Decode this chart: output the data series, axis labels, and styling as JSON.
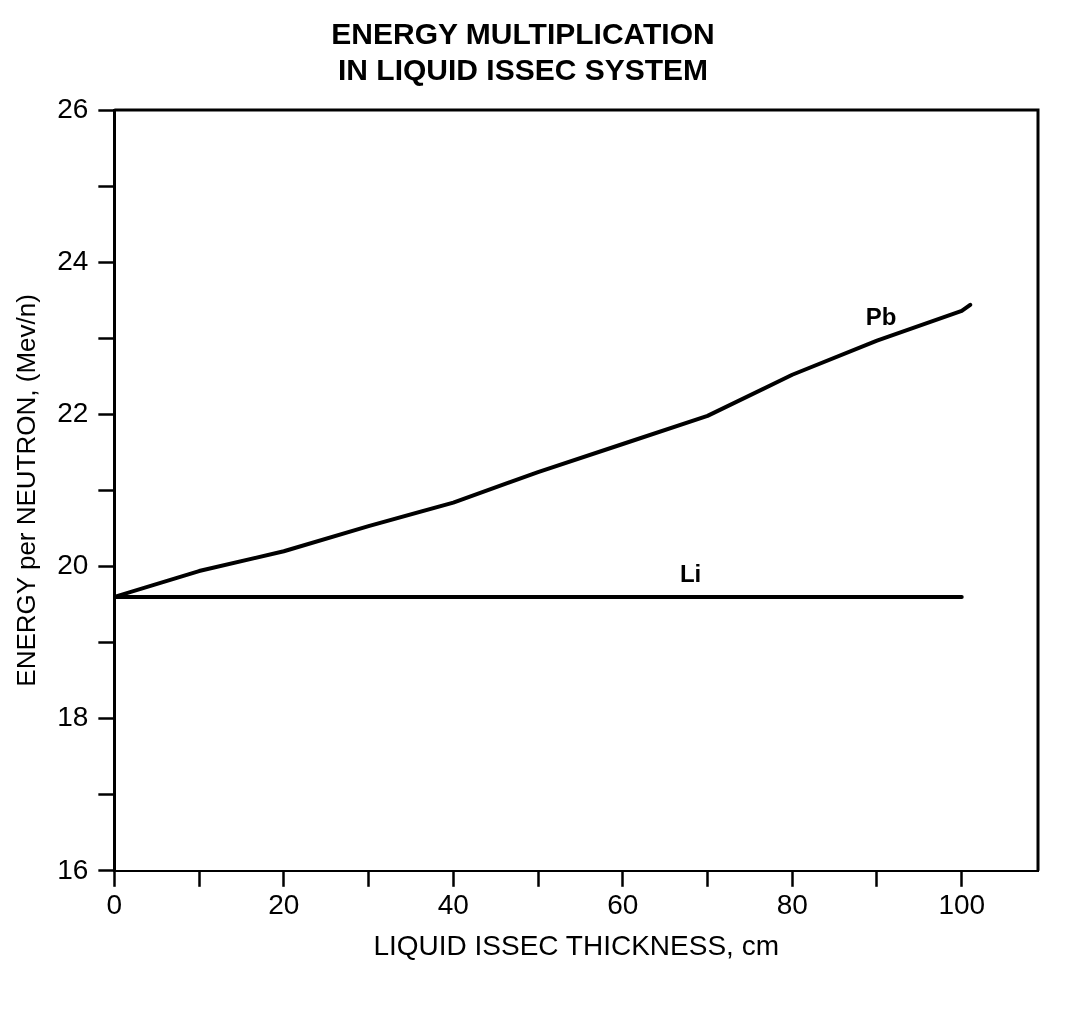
{
  "chart_data": {
    "type": "line",
    "title": "ENERGY MULTIPLICATION\nIN LIQUID ISSEC SYSTEM",
    "xlabel": "LIQUID ISSEC THICKNESS, cm",
    "ylabel": "ENERGY per NEUTRON, (Mev/n)",
    "series": [
      {
        "name": "Pb",
        "color": "#000000",
        "x": [
          0,
          10,
          20,
          30,
          40,
          50,
          60,
          70,
          80,
          90,
          100,
          101
        ],
        "values": [
          19.6,
          19.94,
          20.2,
          20.53,
          20.84,
          21.24,
          21.61,
          21.98,
          22.52,
          22.97,
          23.36,
          23.44
        ]
      },
      {
        "name": "Li",
        "color": "#000000",
        "x": [
          0,
          100
        ],
        "values": [
          19.6,
          19.6
        ]
      }
    ],
    "xlim": [
      0,
      109
    ],
    "xticks": [
      0,
      {
        "value": 10,
        "label": null
      },
      20,
      {
        "value": 30,
        "label": null
      },
      40,
      {
        "value": 50,
        "label": null
      },
      60,
      {
        "value": 70,
        "label": null
      },
      80,
      {
        "value": 90,
        "label": null
      },
      100
    ],
    "ylim": [
      16,
      26
    ],
    "yticks": [
      16,
      {
        "value": 17,
        "label": null
      },
      18,
      {
        "value": 19,
        "label": null
      },
      20,
      {
        "value": 21,
        "label": null
      },
      22,
      {
        "value": 23,
        "label": null
      },
      24,
      {
        "value": 25,
        "label": null
      },
      26
    ],
    "legend": false,
    "grid": false,
    "marker": "none",
    "line_style": "solid"
  }
}
